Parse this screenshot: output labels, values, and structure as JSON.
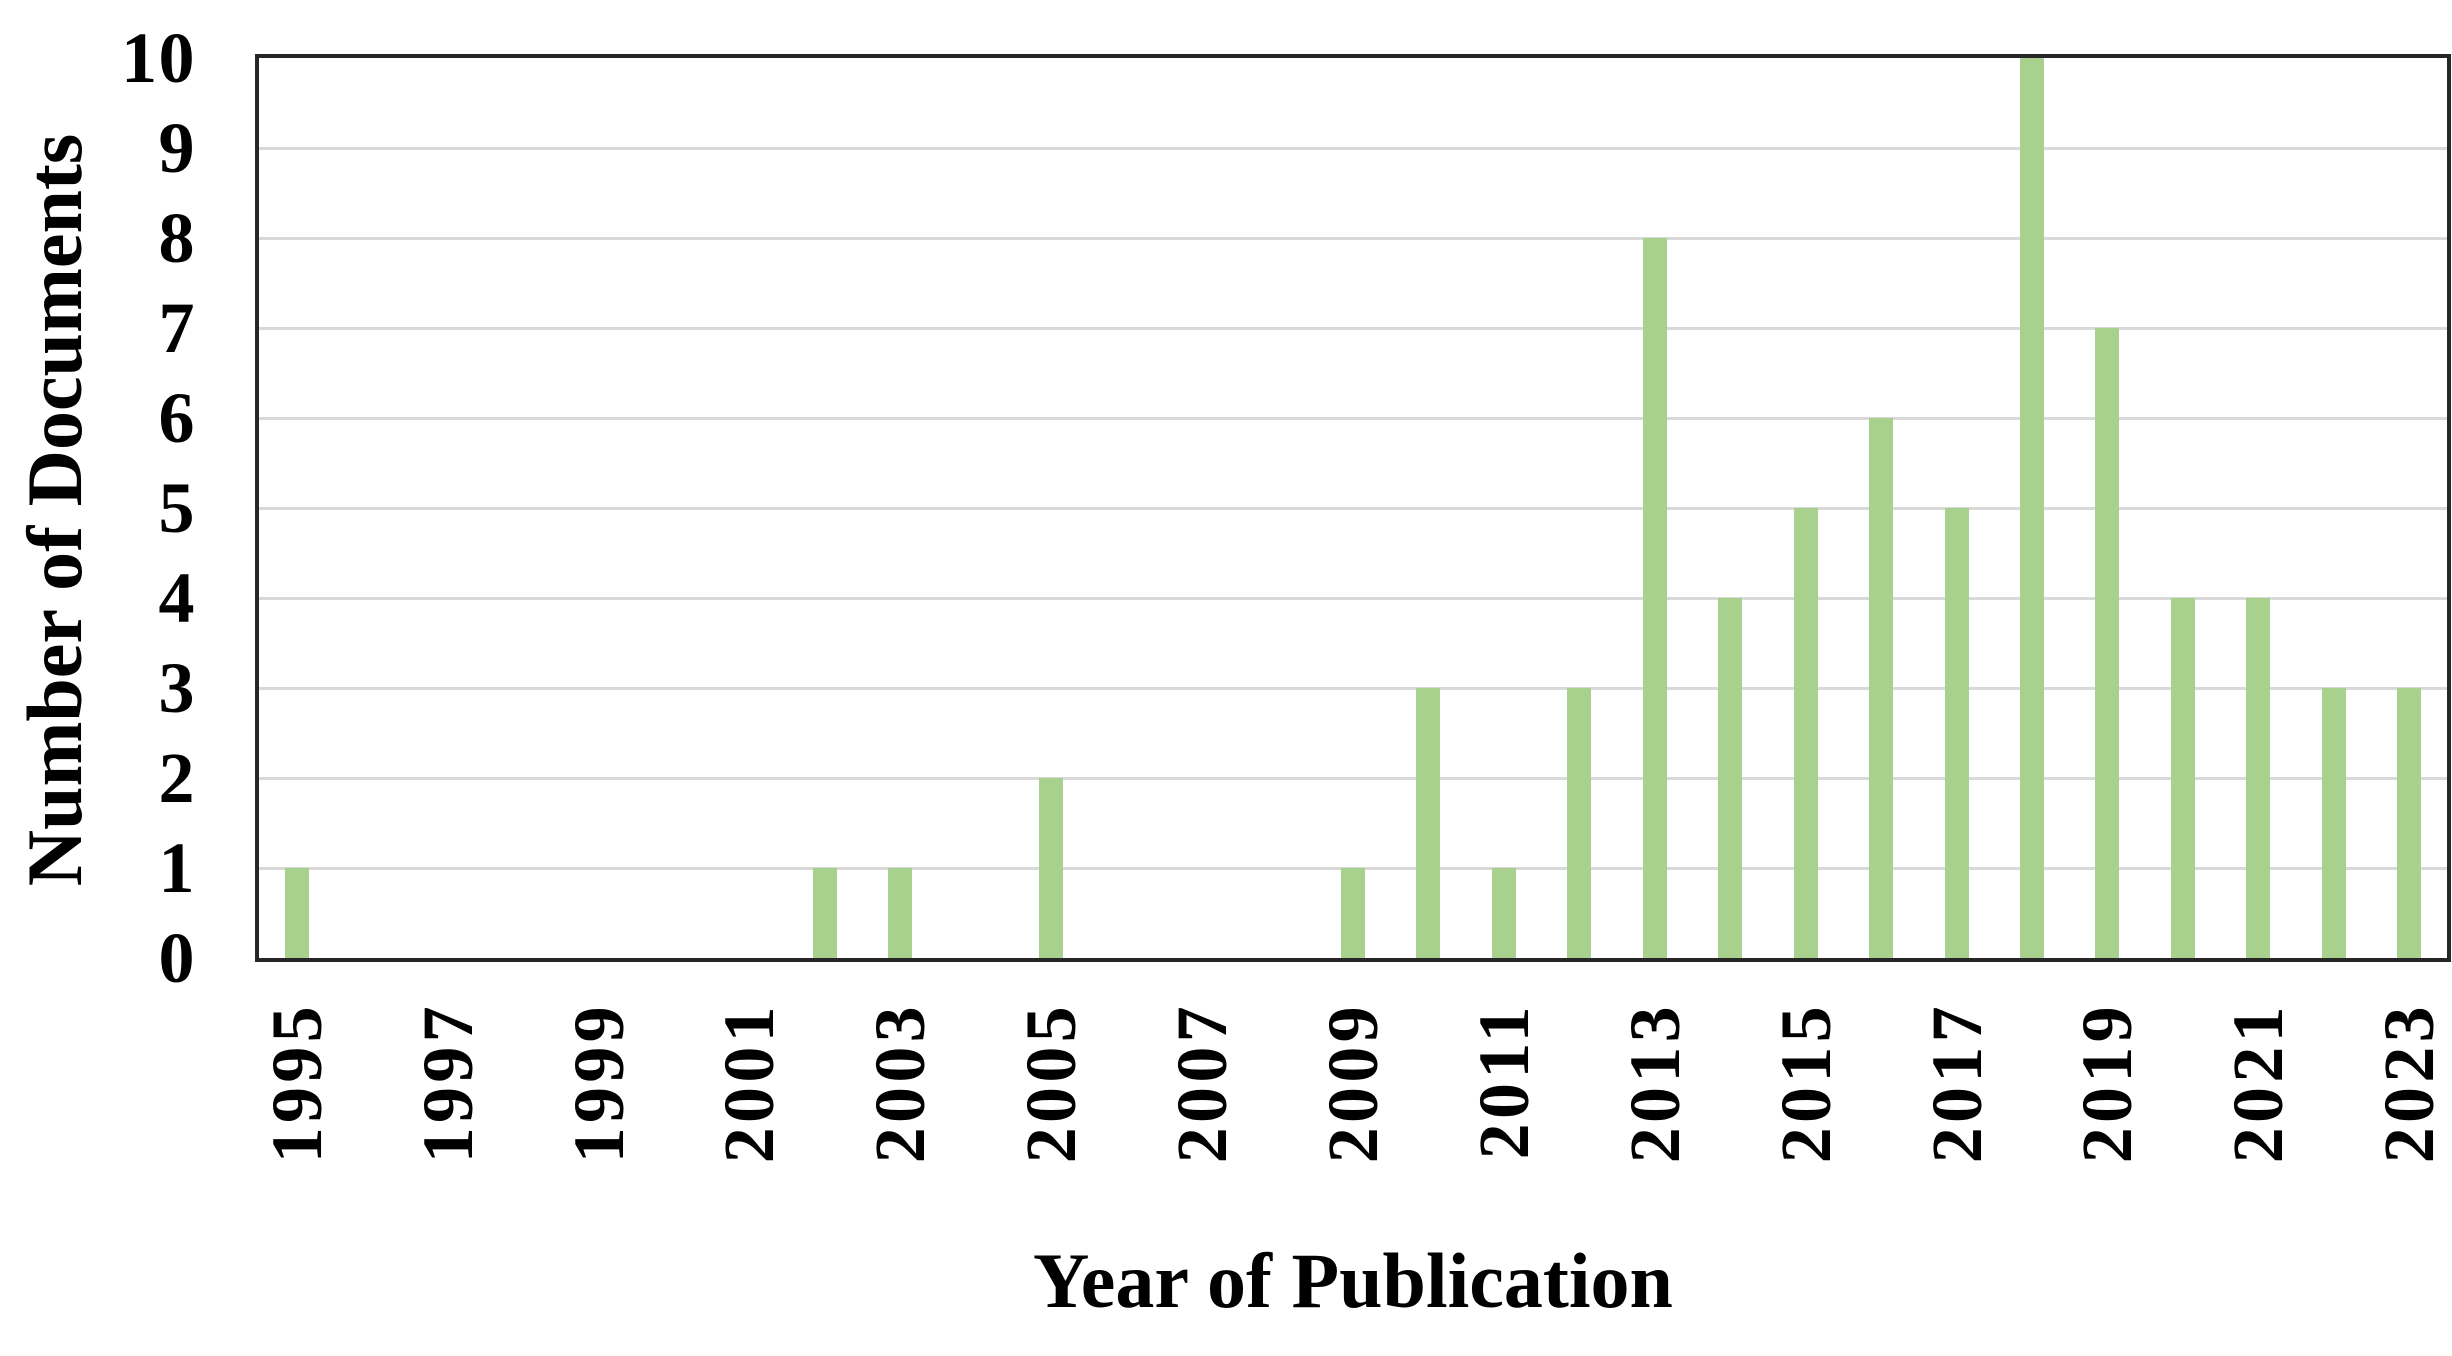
{
  "figure": {
    "background": "#ffffff"
  },
  "colors": {
    "bar_fill": "#a9d18e",
    "gridline": "#d9d9d9",
    "frame": "#262626",
    "text": "#000000"
  },
  "chart_data": {
    "type": "bar",
    "title": "",
    "xlabel": "Year of Publication",
    "ylabel": "Number of Documents",
    "categories": [
      "1995",
      "1996",
      "1997",
      "1998",
      "1999",
      "2000",
      "2001",
      "2002",
      "2003",
      "2004",
      "2005",
      "2006",
      "2007",
      "2008",
      "2009",
      "2010",
      "2011",
      "2012",
      "2013",
      "2014",
      "2015",
      "2016",
      "2017",
      "2018",
      "2019",
      "2020",
      "2021",
      "2022",
      "2023"
    ],
    "values": [
      1,
      0,
      0,
      0,
      0,
      0,
      0,
      1,
      1,
      0,
      2,
      0,
      0,
      0,
      1,
      3,
      1,
      3,
      8,
      4,
      5,
      6,
      5,
      10,
      7,
      4,
      4,
      3,
      3
    ],
    "ylim": [
      0,
      10
    ],
    "y_tick_labels": [
      "0",
      "1",
      "2",
      "3",
      "4",
      "5",
      "6",
      "7",
      "8",
      "9",
      "10"
    ],
    "x_tick_labels_shown": [
      "1995",
      "1997",
      "1999",
      "2001",
      "2003",
      "2005",
      "2007",
      "2009",
      "2011",
      "2013",
      "2015",
      "2017",
      "2019",
      "2021",
      "2023"
    ],
    "x_tick_interval": 2,
    "grid": "horizontal",
    "legend_position": "none",
    "bar_color": "#a9d18e"
  }
}
